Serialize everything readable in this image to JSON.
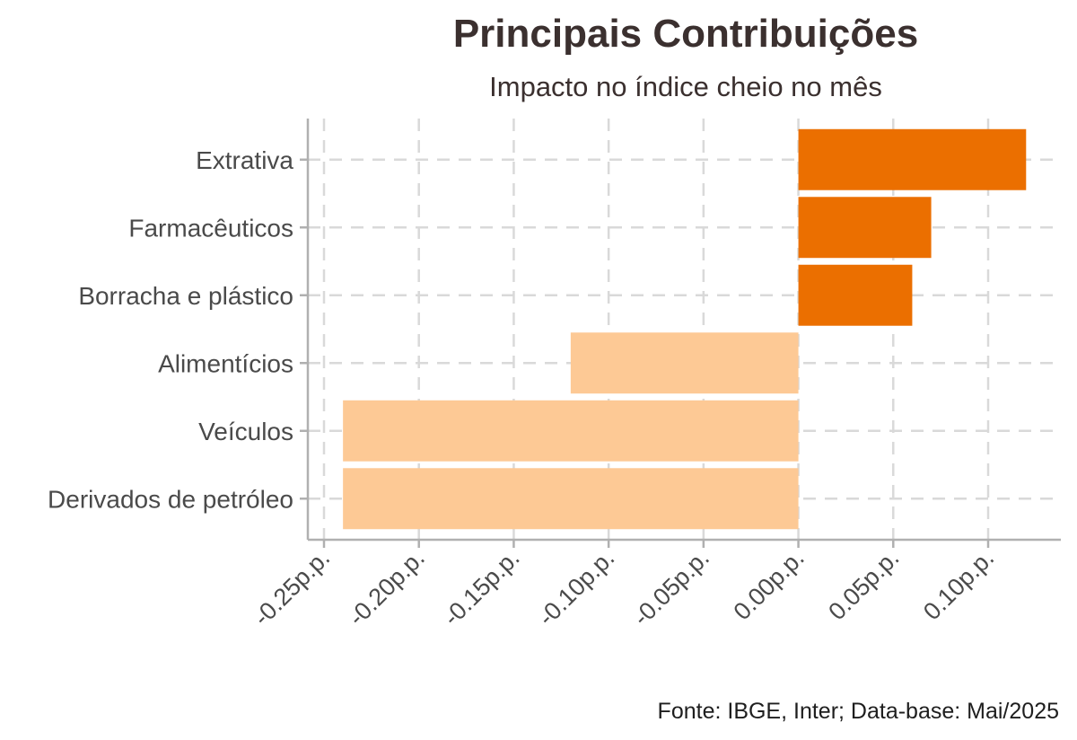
{
  "chart_data": {
    "type": "bar",
    "orientation": "horizontal",
    "title": "Principais Contribuições",
    "subtitle": "Impacto no índice cheio no mês",
    "caption": "Fonte: IBGE, Inter; Data-base: Mai/2025",
    "xlabel": "",
    "ylabel": "",
    "categories": [
      "Extrativa",
      "Farmacêuticos",
      "Borracha e plástico",
      "Alimentícios",
      "Veículos",
      "Derivados de petróleo"
    ],
    "values": [
      0.12,
      0.07,
      0.06,
      -0.12,
      -0.24,
      -0.24
    ],
    "xlim": [
      -0.26,
      0.135
    ],
    "x_ticks": [
      -0.25,
      -0.2,
      -0.15,
      -0.1,
      -0.05,
      0.0,
      0.05,
      0.1
    ],
    "x_tick_labels": [
      "-0.25p.p.",
      "-0.20p.p.",
      "-0.15p.p.",
      "-0.10p.p.",
      "-0.05p.p.",
      "0.00p.p.",
      "0.05p.p.",
      "0.10p.p."
    ],
    "grid": true,
    "legend": false,
    "colors": {
      "positive": "#eb6f00",
      "negative": "#fdc995"
    }
  }
}
